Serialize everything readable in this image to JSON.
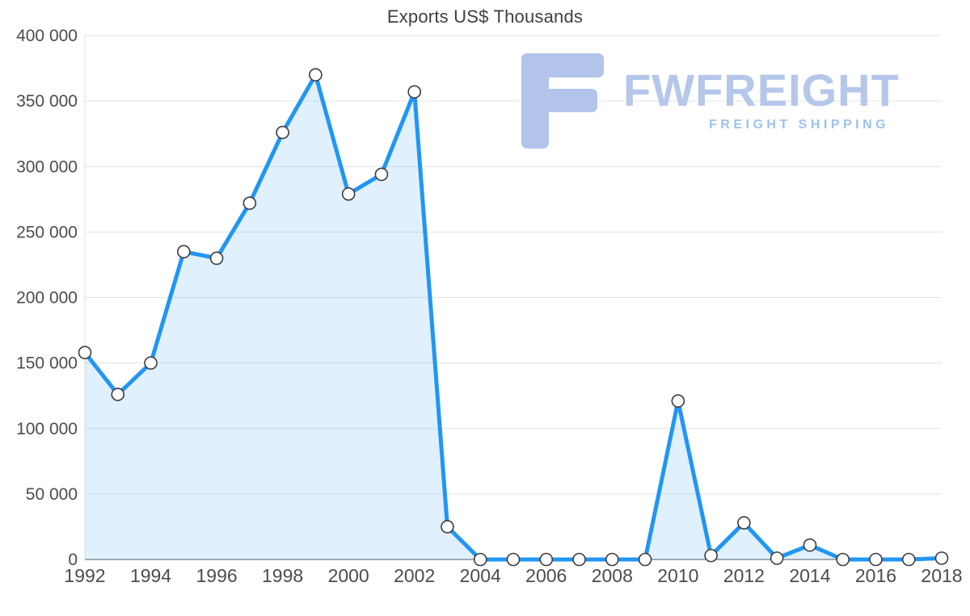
{
  "chart_data": {
    "type": "area",
    "title": "Exports US$ Thousands",
    "x": [
      1992,
      1993,
      1994,
      1995,
      1996,
      1997,
      1998,
      1999,
      2000,
      2001,
      2002,
      2003,
      2004,
      2005,
      2006,
      2007,
      2008,
      2009,
      2010,
      2011,
      2012,
      2013,
      2014,
      2015,
      2016,
      2017,
      2018
    ],
    "values": [
      158000,
      126000,
      150000,
      235000,
      230000,
      272000,
      326000,
      370000,
      279000,
      294000,
      357000,
      25000,
      0,
      0,
      0,
      0,
      0,
      0,
      121000,
      3000,
      28000,
      1000,
      11000,
      0,
      0,
      0,
      1000
    ],
    "xlabel": "",
    "ylabel": "",
    "ylim": [
      0,
      400000
    ],
    "ytick_step": 50000,
    "xtick_step": 2,
    "grid": true,
    "legend": "none",
    "line_color": "#2196f3",
    "line_width": 5,
    "fill_color": "#2196f3",
    "fill_opacity": 0.14,
    "marker_fill": "#ffffff",
    "marker_stroke": "#3c3c3c",
    "marker_radius": 7.5,
    "grid_color": "#e3e3e3",
    "baseline_color": "#8f8f8f",
    "tick_color": "#4c4c4c",
    "title_color": "#3f3f3f",
    "y_tick_format": "space-grouped"
  },
  "watermark": {
    "brand": "FWFREIGHT",
    "subtitle": "FREIGHT SHIPPING",
    "icon": "fwfreight-logo",
    "icon_color": "#b2c4ea",
    "brand_color": "#b5c7ea",
    "subtitle_color": "#9dc1ee"
  }
}
